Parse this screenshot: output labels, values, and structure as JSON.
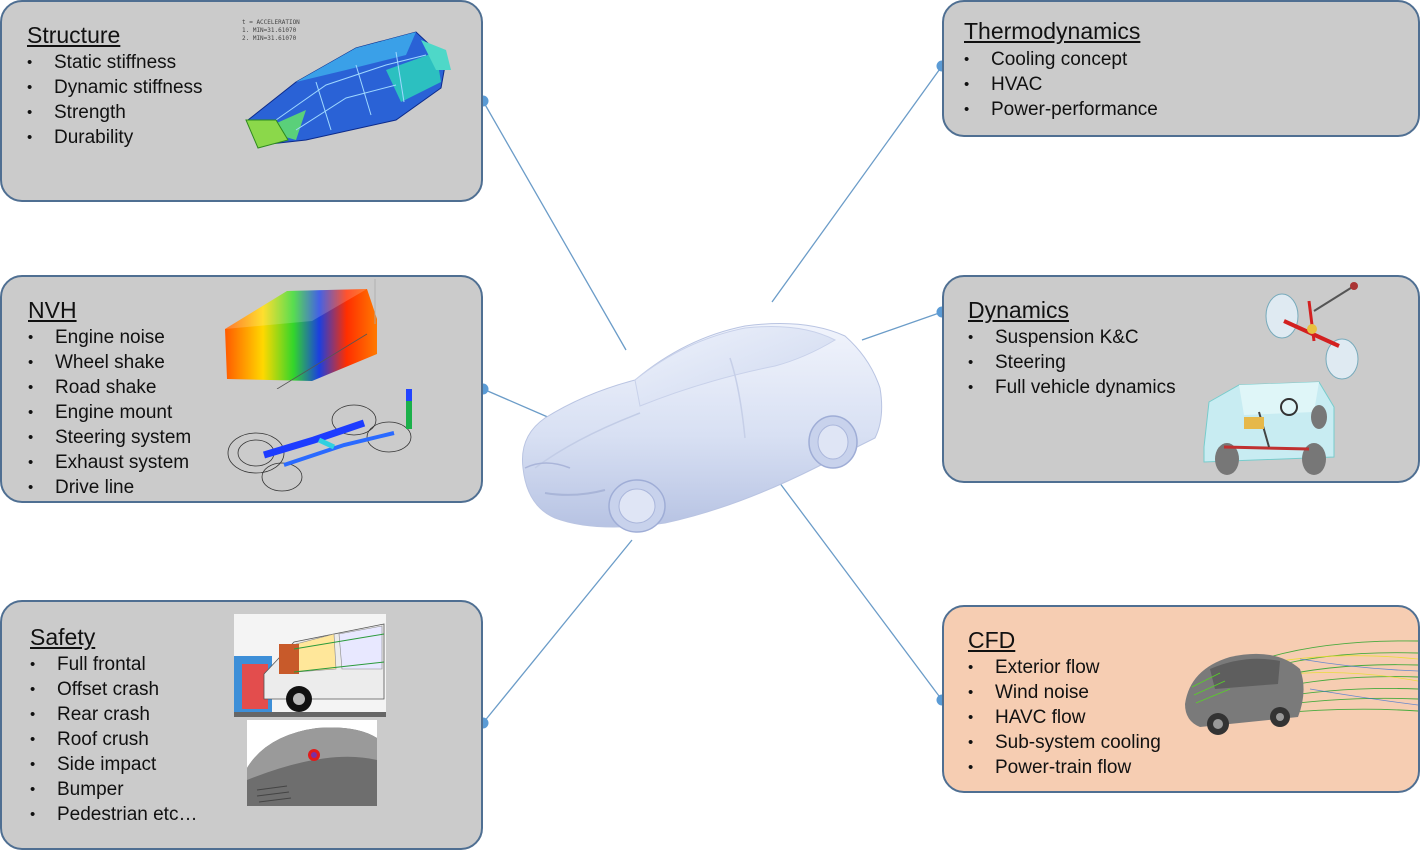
{
  "panels": {
    "structure": {
      "title": "Structure",
      "items": [
        "Static stiffness",
        "Dynamic stiffness",
        "Strength",
        "Durability"
      ]
    },
    "nvh": {
      "title": "NVH",
      "items": [
        "Engine noise",
        "Wheel shake",
        "Road shake",
        "Engine mount",
        "Steering system",
        "Exhaust system",
        "Drive line"
      ]
    },
    "safety": {
      "title": "Safety",
      "items": [
        "Full frontal",
        "Offset crash",
        "Rear crash",
        "Roof crush",
        "Side impact",
        "Bumper",
        "Pedestrian etc…"
      ]
    },
    "thermo": {
      "title": "Thermodynamics",
      "items": [
        "Cooling concept",
        "HVAC",
        "Power-performance"
      ]
    },
    "dynamics": {
      "title": "Dynamics",
      "items": [
        "Suspension K&C",
        "Steering",
        "Full vehicle dynamics"
      ]
    },
    "cfd": {
      "title": "CFD",
      "items": [
        "Exterior flow",
        "Wind noise",
        "HAVC flow",
        "Sub-system cooling",
        "Power-train flow"
      ]
    }
  },
  "images": {
    "structure_fea": {
      "label_line1": "t = ACCELERATION",
      "label_line2": "1. MIN=31.61070",
      "label_line3": "2. MIN=31.61070"
    }
  },
  "bullet_char": "•",
  "colors": {
    "panel_fill": "#cbcbcb",
    "panel_border": "#4f6f92",
    "cfd_fill": "#f6cdb2",
    "connector": "#6b9cc8",
    "car_body": "#dbe3f5"
  }
}
